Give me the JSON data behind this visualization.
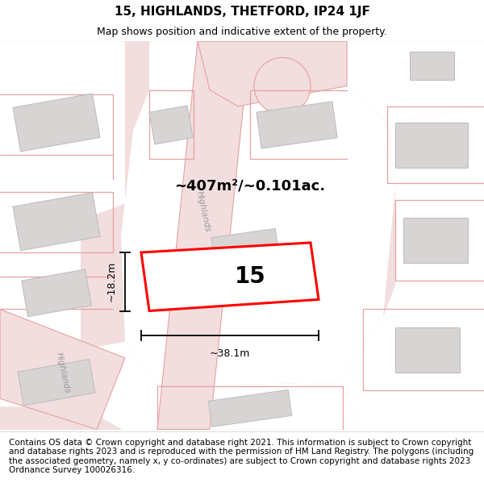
{
  "title": "15, HIGHLANDS, THETFORD, IP24 1JF",
  "subtitle": "Map shows position and indicative extent of the property.",
  "footer": "Contains OS data © Crown copyright and database right 2021. This information is subject to Crown copyright and database rights 2023 and is reproduced with the permission of HM Land Registry. The polygons (including the associated geometry, namely x, y co-ordinates) are subject to Crown copyright and database rights 2023 Ordnance Survey 100026316.",
  "bg_color": "#f2eded",
  "map_bg": "#ffffff",
  "road_fill": "#f2dede",
  "road_line": "#e8a0a0",
  "building_fill": "#d8d4d4",
  "building_edge": "#bbbbbb",
  "plot_fill": "#ffffff",
  "plot_edge": "#ff0000",
  "plot_label": "15",
  "area_label": "~407m²/~0.101ac.",
  "width_label": "~38.1m",
  "height_label": "~18.2m",
  "road_label1": "Highlands",
  "road_label2": "Highlands",
  "figsize": [
    6.0,
    6.25
  ],
  "dpi": 100,
  "title_fontsize": 11,
  "subtitle_fontsize": 9,
  "footer_fontsize": 7.5
}
